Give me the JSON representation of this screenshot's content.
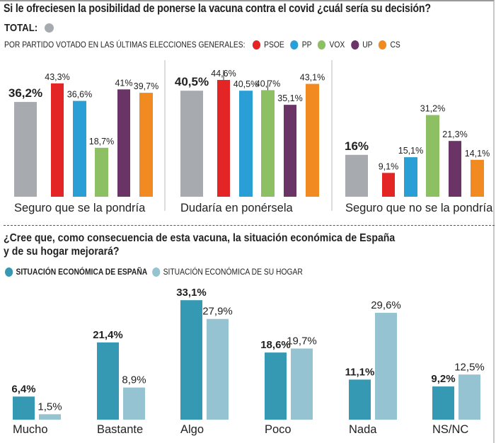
{
  "question1": {
    "title": "Si le ofreciesen la posibilidad de ponerse la vacuna contra el covid ¿cuál sería su decisión?",
    "total_label": "TOTAL:",
    "total_color": "#a7abb0",
    "party_prefix": "POR PARTIDO VOTADO EN LAS ÚLTIMAS ELECCIONES GENERALES:",
    "parties": [
      {
        "name": "PSOE",
        "color": "#e32526"
      },
      {
        "name": "PP",
        "color": "#2a9fd6"
      },
      {
        "name": "VOX",
        "color": "#8cc063"
      },
      {
        "name": "UP",
        "color": "#6b3466"
      },
      {
        "name": "CS",
        "color": "#f28a22"
      }
    ]
  },
  "question2": {
    "title_line1": "¿Cree que, como consecuencia de esta vacuna, la situación económica de España",
    "title_line2": "y de su hogar mejorará?",
    "legend": [
      {
        "label": "SITUACIÓN ECONÓMICA DE ESPAÑA",
        "color": "#3699b3"
      },
      {
        "label": "SITUACIÓN ECONÓMICA DE SU HOGAR",
        "color": "#95c3d2"
      }
    ]
  },
  "chart_data": [
    {
      "type": "bar",
      "title": "Si le ofreciesen la posibilidad de ponerse la vacuna contra el covid ¿cuál sería su decisión?",
      "categories": [
        "Seguro que se la pondría",
        "Dudaría en ponérsela",
        "Seguro que no se la pondría"
      ],
      "series": [
        {
          "name": "TOTAL",
          "color": "#a7abb0",
          "values": [
            36.2,
            40.5,
            16
          ],
          "labels": [
            "36,2%",
            "40,5%",
            "16%"
          ]
        },
        {
          "name": "PSOE",
          "color": "#e32526",
          "values": [
            43.3,
            44.6,
            9.1
          ],
          "labels": [
            "43,3%",
            "44,6%",
            "9,1%"
          ]
        },
        {
          "name": "PP",
          "color": "#2a9fd6",
          "values": [
            36.6,
            40.5,
            15.1
          ],
          "labels": [
            "36,6%",
            "40,5%",
            "15,1%"
          ]
        },
        {
          "name": "VOX",
          "color": "#8cc063",
          "values": [
            18.7,
            40.7,
            31.2
          ],
          "labels": [
            "18,7%",
            "40,7%",
            "31,2%"
          ]
        },
        {
          "name": "UP",
          "color": "#6b3466",
          "values": [
            41,
            35.1,
            21.3
          ],
          "labels": [
            "41%",
            "35,1%",
            "21,3%"
          ]
        },
        {
          "name": "CS",
          "color": "#f28a22",
          "values": [
            39.7,
            43.1,
            14.1
          ],
          "labels": [
            "39,7%",
            "43,1%",
            "14,1%"
          ]
        }
      ],
      "xlabel": "",
      "ylabel": "",
      "ylim": [
        0,
        50
      ],
      "grid": false
    },
    {
      "type": "bar",
      "title": "¿Cree que, como consecuencia de esta vacuna, la situación económica de España y de su hogar mejorará?",
      "categories": [
        "Mucho",
        "Bastante",
        "Algo",
        "Poco",
        "Nada",
        "NS/NC"
      ],
      "series": [
        {
          "name": "SITUACIÓN ECONÓMICA DE ESPAÑA",
          "color": "#3699b3",
          "values": [
            6.4,
            21.4,
            33.1,
            18.6,
            11.1,
            9.2
          ],
          "labels": [
            "6,4%",
            "21,4%",
            "33,1%",
            "18,6%",
            "11,1%",
            "9,2%"
          ]
        },
        {
          "name": "SITUACIÓN ECONÓMICA DE SU HOGAR",
          "color": "#95c3d2",
          "values": [
            1.5,
            8.9,
            27.9,
            19.7,
            29.6,
            12.5
          ],
          "labels": [
            "1,5%",
            "8,9%",
            "27,9%",
            "19,7%",
            "29,6%",
            "12,5%"
          ]
        }
      ],
      "legend": "top-left",
      "xlabel": "",
      "ylabel": "",
      "ylim": [
        0,
        35
      ],
      "grid": false
    }
  ]
}
